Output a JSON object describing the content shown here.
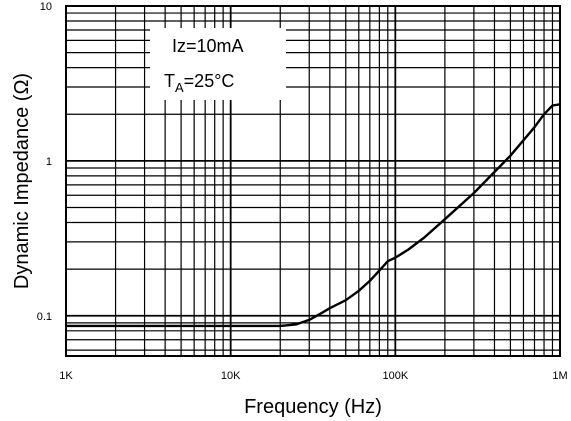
{
  "chart_data": {
    "type": "line",
    "xlabel": "Frequency (Hz)",
    "ylabel": "Dynamic Impedance (Ω)",
    "x_scale": "log",
    "y_scale": "log",
    "xlim": [
      1000,
      1000000
    ],
    "ylim": [
      0.055,
      10
    ],
    "x_ticks": [
      {
        "value": 1000,
        "label": "1K"
      },
      {
        "value": 10000,
        "label": "10K"
      },
      {
        "value": 100000,
        "label": "100K"
      },
      {
        "value": 1000000,
        "label": "1M"
      }
    ],
    "y_ticks": [
      {
        "value": 0.1,
        "label": "0.1"
      },
      {
        "value": 1,
        "label": "1"
      },
      {
        "value": 10,
        "label": "10"
      }
    ],
    "grid": true,
    "annotations": {
      "current": "Iz=10mA",
      "temp_prefix": "T",
      "temp_sub": "A",
      "temp_suffix": "=25°C"
    },
    "series": [
      {
        "x": [
          1000,
          5000,
          10000,
          20000,
          25000,
          30000,
          35000,
          40000,
          50000,
          60000,
          70000,
          80000,
          90000,
          100000,
          120000,
          150000,
          200000,
          300000,
          500000,
          700000,
          800000,
          900000,
          1000000
        ],
        "y": [
          0.086,
          0.086,
          0.086,
          0.086,
          0.088,
          0.094,
          0.103,
          0.112,
          0.126,
          0.145,
          0.168,
          0.196,
          0.225,
          0.237,
          0.268,
          0.32,
          0.42,
          0.62,
          1.08,
          1.65,
          2.0,
          2.28,
          2.32
        ]
      }
    ]
  }
}
